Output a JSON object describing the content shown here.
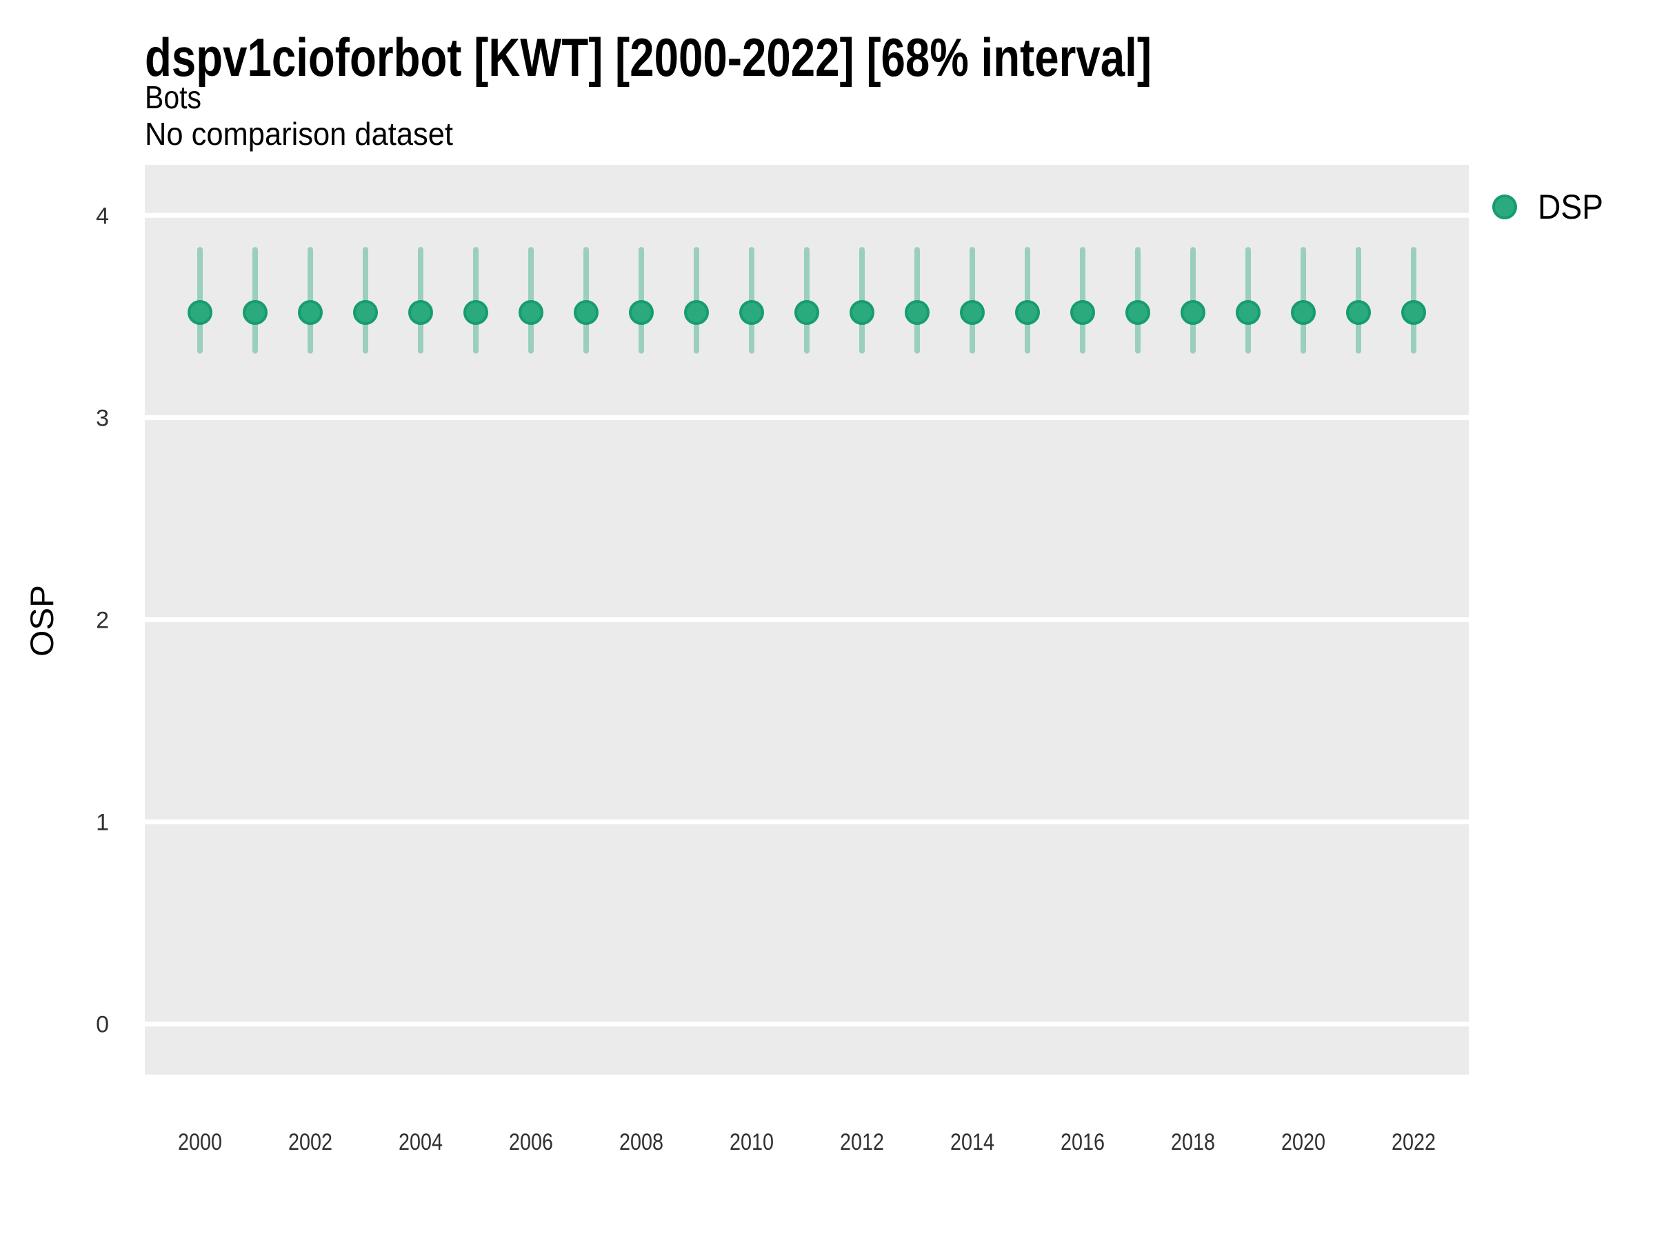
{
  "chart_data": {
    "type": "scatter",
    "title": "dspv1cioforbot [KWT] [2000-2022] [68% interval]",
    "subtitle": "Bots",
    "note": "No comparison dataset",
    "xlabel": "",
    "ylabel": "OSP",
    "interval_label": "68% interval",
    "x": [
      2000,
      2001,
      2002,
      2003,
      2004,
      2005,
      2006,
      2007,
      2008,
      2009,
      2010,
      2011,
      2012,
      2013,
      2014,
      2015,
      2016,
      2017,
      2018,
      2019,
      2020,
      2021,
      2022
    ],
    "series": [
      {
        "name": "DSP",
        "values": [
          3.52,
          3.52,
          3.52,
          3.52,
          3.52,
          3.52,
          3.52,
          3.52,
          3.52,
          3.52,
          3.52,
          3.52,
          3.52,
          3.52,
          3.52,
          3.52,
          3.52,
          3.52,
          3.52,
          3.52,
          3.52,
          3.52,
          3.52
        ],
        "lower_68": [
          3.33,
          3.33,
          3.33,
          3.33,
          3.33,
          3.33,
          3.33,
          3.33,
          3.33,
          3.33,
          3.33,
          3.33,
          3.33,
          3.33,
          3.33,
          3.33,
          3.33,
          3.33,
          3.33,
          3.33,
          3.33,
          3.33,
          3.33
        ],
        "upper_68": [
          3.83,
          3.83,
          3.83,
          3.83,
          3.83,
          3.83,
          3.83,
          3.83,
          3.83,
          3.83,
          3.83,
          3.83,
          3.83,
          3.83,
          3.83,
          3.83,
          3.83,
          3.83,
          3.83,
          3.83,
          3.83,
          3.83,
          3.83
        ]
      }
    ],
    "xticks": [
      2000,
      2002,
      2004,
      2006,
      2008,
      2010,
      2012,
      2014,
      2016,
      2018,
      2020,
      2022
    ],
    "yticks": [
      0,
      1,
      2,
      3,
      4
    ],
    "xlim": [
      1999,
      2023
    ],
    "ylim": [
      -0.25,
      4.25
    ],
    "grid": "horizontal-major-only",
    "legend_position": "right-top",
    "colors": {
      "point_fill": "#2BAA7E",
      "point_stroke": "#169C6F",
      "interval_bar": "rgba(44,170,127,0.42)",
      "panel_background": "#EBEBEB",
      "grid_line": "#FFFFFF",
      "tick_text": "#303030",
      "text": "#000000"
    }
  }
}
